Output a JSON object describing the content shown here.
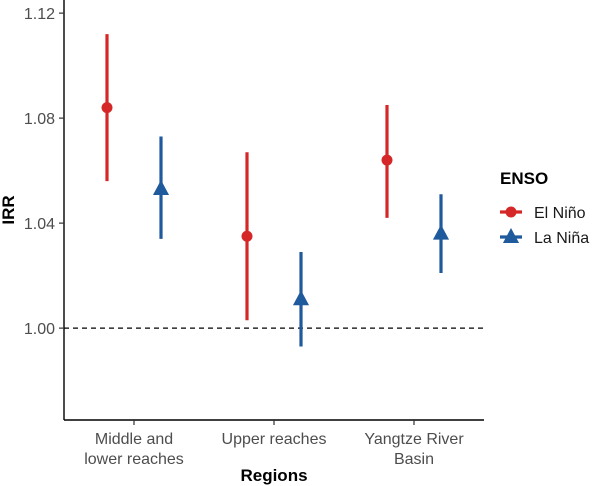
{
  "chart_data": {
    "type": "scatter",
    "subtype": "point-range",
    "xlabel": "Regions",
    "ylabel": "IRR",
    "ylim": [
      0.965,
      1.125
    ],
    "yticks": [
      1.0,
      1.04,
      1.08,
      1.12
    ],
    "ytick_labels": [
      "1.00",
      "1.04",
      "1.08",
      "1.12"
    ],
    "categories": [
      [
        "Middle and",
        "lower reaches"
      ],
      [
        "Upper reaches"
      ],
      [
        "Yangtze River",
        "Basin"
      ]
    ],
    "reference_line": {
      "y": 1.0,
      "style": "dashed"
    },
    "grid": false,
    "legend": {
      "title": "ENSO",
      "position": "right"
    },
    "series": [
      {
        "name": "El Niño",
        "color": "#d62728",
        "marker": "circle",
        "estimate": [
          1.084,
          1.035,
          1.064
        ],
        "lower": [
          1.056,
          1.003,
          1.042
        ],
        "upper": [
          1.112,
          1.067,
          1.085
        ]
      },
      {
        "name": "La Niña",
        "color": "#1f5a9c",
        "marker": "triangle",
        "estimate": [
          1.053,
          1.011,
          1.036
        ],
        "lower": [
          1.034,
          0.993,
          1.021
        ],
        "upper": [
          1.073,
          1.029,
          1.051
        ]
      }
    ]
  }
}
